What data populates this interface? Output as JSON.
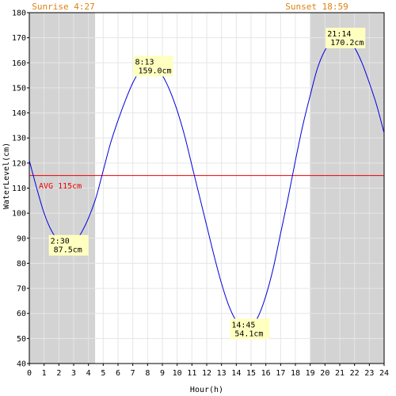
{
  "chart_data": {
    "type": "line",
    "xlabel": "Hour(h)",
    "ylabel": "WaterLevel(cm)",
    "xlim": [
      0,
      24
    ],
    "ylim": [
      40,
      180
    ],
    "x_ticks": [
      "0",
      "1",
      "2",
      "3",
      "4",
      "5",
      "6",
      "7",
      "8",
      "9",
      "10",
      "11",
      "12",
      "13",
      "14",
      "15",
      "16",
      "17",
      "18",
      "19",
      "20",
      "21",
      "22",
      "23",
      "24"
    ],
    "y_ticks": [
      "40",
      "50",
      "60",
      "70",
      "80",
      "90",
      "100",
      "110",
      "120",
      "130",
      "140",
      "150",
      "160",
      "170",
      "180"
    ],
    "grid": true,
    "sunrise_label": "Sunrise 4:27",
    "sunset_label": "Sunset 18:59",
    "night_shading": [
      [
        0,
        4.45
      ],
      [
        18.98,
        24
      ]
    ],
    "average": {
      "label": "AVG 115cm",
      "value": 115,
      "color": "#ee0000"
    },
    "series": [
      {
        "color": "#0000dd",
        "x": [
          0,
          0.5,
          1,
          1.5,
          2,
          2.5,
          3,
          3.5,
          4,
          4.5,
          5,
          5.5,
          6,
          6.5,
          7,
          7.5,
          8,
          8.5,
          9,
          9.5,
          10,
          10.5,
          11,
          11.5,
          12,
          12.5,
          13,
          13.5,
          14,
          14.5,
          15,
          15.5,
          16,
          16.5,
          17,
          17.5,
          18,
          18.5,
          19,
          19.5,
          20,
          20.5,
          21,
          21.5,
          22,
          22.5,
          23,
          23.5,
          24
        ],
        "y": [
          121,
          110,
          100,
          93,
          89,
          87.6,
          88,
          92,
          98,
          106,
          117,
          128,
          137,
          145,
          152,
          157,
          159,
          158.6,
          155,
          149,
          141,
          131,
          119,
          107,
          95,
          83,
          72,
          63,
          57,
          54.3,
          54.5,
          59,
          67,
          78,
          92,
          106,
          121,
          135,
          147,
          158,
          165,
          169,
          170.2,
          169,
          166,
          160,
          152,
          143,
          132
        ]
      }
    ],
    "annotations": [
      {
        "time": "2:30",
        "level": "87.5cm",
        "x": 2.5,
        "y": 87.5
      },
      {
        "time": "8:13",
        "level": "159.0cm",
        "x": 8.22,
        "y": 159.0
      },
      {
        "time": "14:45",
        "level": "54.1cm",
        "x": 14.75,
        "y": 54.1
      },
      {
        "time": "21:14",
        "level": "170.2cm",
        "x": 21.23,
        "y": 170.2
      }
    ]
  }
}
